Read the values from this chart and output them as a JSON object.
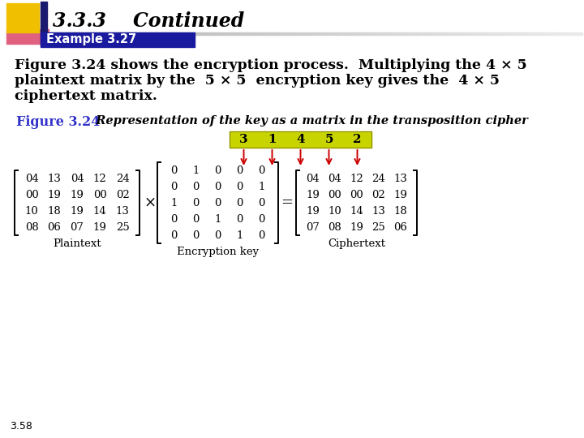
{
  "title": "3.3.3    Continued",
  "example_label": "Example 3.27",
  "body_text_line1": "Figure 3.24 shows the encryption process.  Multiplying the 4 × 5",
  "body_text_line2": "plaintext matrix by the  5 × 5  encryption key gives the  4 × 5",
  "body_text_line3": "ciphertext matrix.",
  "figure_label": "Figure 3.24",
  "figure_caption": "  Representation of the key as a matrix in the transposition cipher",
  "key_row": [
    "3",
    "1",
    "4",
    "5",
    "2"
  ],
  "plaintext": [
    [
      "04",
      "13",
      "04",
      "12",
      "24"
    ],
    [
      "00",
      "19",
      "19",
      "00",
      "02"
    ],
    [
      "10",
      "18",
      "19",
      "14",
      "13"
    ],
    [
      "08",
      "06",
      "07",
      "19",
      "25"
    ]
  ],
  "enc_key": [
    [
      "0",
      "1",
      "0",
      "0",
      "0"
    ],
    [
      "0",
      "0",
      "0",
      "0",
      "1"
    ],
    [
      "1",
      "0",
      "0",
      "0",
      "0"
    ],
    [
      "0",
      "0",
      "1",
      "0",
      "0"
    ],
    [
      "0",
      "0",
      "0",
      "1",
      "0"
    ]
  ],
  "ciphertext": [
    [
      "04",
      "04",
      "12",
      "24",
      "13"
    ],
    [
      "19",
      "00",
      "00",
      "02",
      "19"
    ],
    [
      "19",
      "10",
      "14",
      "13",
      "18"
    ],
    [
      "07",
      "08",
      "19",
      "25",
      "06"
    ]
  ],
  "bg_color": "#ffffff",
  "title_color": "#000000",
  "example_text_color": "#ffffff",
  "body_color": "#000000",
  "figure_label_color": "#3333cc",
  "key_box_color": "#c8d400",
  "key_text_color": "#000000",
  "arrow_color": "#cc0000",
  "footer_text": "3.58"
}
